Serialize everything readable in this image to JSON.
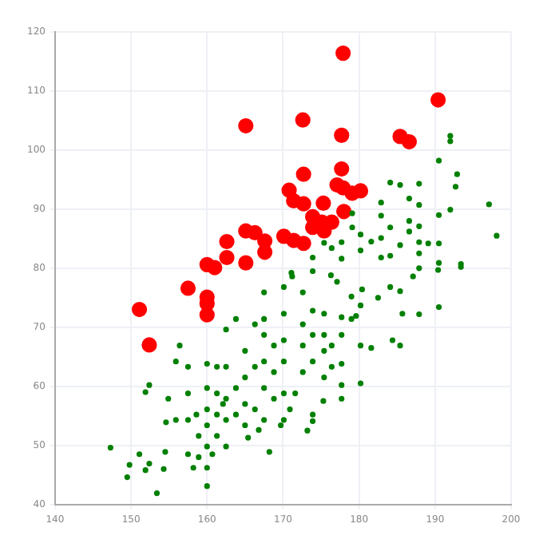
{
  "chart_data": {
    "type": "scatter",
    "xlim": [
      140,
      200
    ],
    "xticks": [
      140,
      150,
      160,
      170,
      180,
      190,
      200
    ],
    "ylim": [
      40,
      120
    ],
    "yticks": [
      40,
      50,
      60,
      70,
      80,
      90,
      100,
      110,
      120
    ],
    "grid": true,
    "legend": false,
    "marker": "circle",
    "series": [
      {
        "color": "#008000",
        "x": [
          190.5,
          192.0,
          192.0,
          192.9,
          192.7,
          197.1,
          198.1,
          192.0,
          190.5,
          190.5,
          190.5,
          193.4,
          187.9,
          187.9,
          187.9,
          187.9,
          187.9,
          186.6,
          185.4,
          184.1,
          182.9,
          182.9,
          182.9,
          182.9,
          181.6,
          180.2,
          180.2,
          179.1,
          179.1,
          177.7,
          177.7,
          176.4,
          175.4,
          173.9,
          171.1,
          186.6,
          185.4,
          184.1,
          189.1,
          186.6,
          184.1,
          193.4,
          187.9,
          190.4,
          187.1,
          185.4,
          184.1,
          182.5,
          180.4,
          179.0,
          180.2,
          185.7,
          187.9,
          190.5,
          185.4,
          184.4,
          181.6,
          180.2,
          179.6,
          177.7,
          177.7,
          177.7,
          177.7,
          177.7,
          180.2,
          176.4,
          175.4,
          175.4,
          175.4,
          175.4,
          173.9,
          173.9,
          173.9,
          175.3,
          173.9,
          173.9,
          173.2,
          172.6,
          172.6,
          172.6,
          172.6,
          171.2,
          170.1,
          170.1,
          170.1,
          170.1,
          170.1,
          170.1,
          168.8,
          168.8,
          168.8,
          168.2,
          167.5,
          167.5,
          167.5,
          167.5,
          167.5,
          167.5,
          166.3,
          166.3,
          166.3,
          165.0,
          165.0,
          165.0,
          165.0,
          163.8,
          163.8,
          163.8,
          162.5,
          162.5,
          162.5,
          162.5,
          162.5,
          161.3,
          161.3,
          161.3,
          161.3,
          160.0,
          160.0,
          160.0,
          160.0,
          160.0,
          160.0,
          160.0,
          158.9,
          158.9,
          158.6,
          157.5,
          157.5,
          157.5,
          157.5,
          156.4,
          155.9,
          155.9,
          154.9,
          154.6,
          154.5,
          154.3,
          153.4,
          152.4,
          151.9,
          152.4,
          151.9,
          151.1,
          149.8,
          149.5,
          147.3,
          158.2,
          160.7,
          162.1,
          169.7,
          170.9,
          165.4,
          166.8,
          171.6,
          176.4,
          179.0,
          177.1,
          176.3,
          173.9
        ],
        "values": [
          98.2,
          102.4,
          101.5,
          95.9,
          93.8,
          90.8,
          85.5,
          89.9,
          89.0,
          84.2,
          80.9,
          80.7,
          94.3,
          90.7,
          87.1,
          84.4,
          82.5,
          91.8,
          94.1,
          94.5,
          91.1,
          88.9,
          85.1,
          81.8,
          84.5,
          85.7,
          83.0,
          86.9,
          89.3,
          84.4,
          81.6,
          83.4,
          84.3,
          81.8,
          79.2,
          86.2,
          83.9,
          82.1,
          84.2,
          88.0,
          86.9,
          80.2,
          80.0,
          79.7,
          78.6,
          76.1,
          76.8,
          75.0,
          76.4,
          75.2,
          73.7,
          72.3,
          72.2,
          73.4,
          66.9,
          67.8,
          66.5,
          66.9,
          71.9,
          71.7,
          68.7,
          63.8,
          60.2,
          57.9,
          60.5,
          63.3,
          61.5,
          66.0,
          68.7,
          72.3,
          72.8,
          68.7,
          64.2,
          57.5,
          55.2,
          54.1,
          52.5,
          62.4,
          66.9,
          70.5,
          75.9,
          78.6,
          76.8,
          72.3,
          67.8,
          64.2,
          58.8,
          54.3,
          57.9,
          62.4,
          66.9,
          48.9,
          75.9,
          71.4,
          68.7,
          64.2,
          59.7,
          54.3,
          70.5,
          63.3,
          56.1,
          66.0,
          61.5,
          57.0,
          53.4,
          71.4,
          59.7,
          55.2,
          69.6,
          63.3,
          57.9,
          54.3,
          49.8,
          63.3,
          58.8,
          55.2,
          51.6,
          63.8,
          59.7,
          56.1,
          53.4,
          49.8,
          46.2,
          43.1,
          51.6,
          48.0,
          55.2,
          63.3,
          58.8,
          54.3,
          48.5,
          66.9,
          64.2,
          54.3,
          57.9,
          53.9,
          48.9,
          46.0,
          41.9,
          60.2,
          59.0,
          46.9,
          45.8,
          48.5,
          46.7,
          44.6,
          49.6,
          46.2,
          48.5,
          57.0,
          53.4,
          56.1,
          51.3,
          52.6,
          58.8,
          66.9,
          71.4,
          77.7,
          78.8,
          79.5
        ]
      },
      {
        "color": "#ff0000",
        "x": [
          177.9,
          190.4,
          165.1,
          172.6,
          177.7,
          185.4,
          186.6,
          177.7,
          172.7,
          177.1,
          177.9,
          179.1,
          180.2,
          170.8,
          171.4,
          172.7,
          175.3,
          178.0,
          173.9,
          173.9,
          175.1,
          176.4,
          175.4,
          165.1,
          166.3,
          167.6,
          170.1,
          171.4,
          172.7,
          162.6,
          167.6,
          162.6,
          165.1,
          160.0,
          161.0,
          157.5,
          160.0,
          160.0,
          151.1,
          160.0,
          152.4
        ],
        "values": [
          116.4,
          108.5,
          104.1,
          105.1,
          102.5,
          102.3,
          101.4,
          96.8,
          95.9,
          94.1,
          93.6,
          92.7,
          93.1,
          93.2,
          91.4,
          90.9,
          91.0,
          89.6,
          88.7,
          86.9,
          87.8,
          87.8,
          86.3,
          86.3,
          86.0,
          84.6,
          85.4,
          84.7,
          84.2,
          84.5,
          82.7,
          81.8,
          80.9,
          80.6,
          80.1,
          76.6,
          75.1,
          74.0,
          73.0,
          72.1,
          67.0
        ]
      }
    ]
  }
}
